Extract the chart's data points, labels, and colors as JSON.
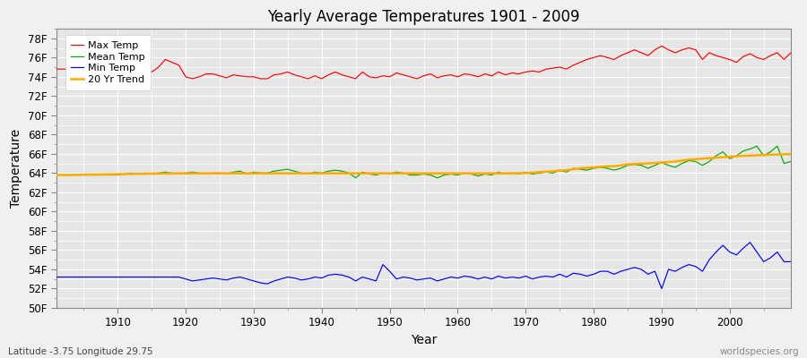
{
  "title": "Yearly Average Temperatures 1901 - 2009",
  "xlabel": "Year",
  "ylabel": "Temperature",
  "year_start": 1901,
  "year_end": 2009,
  "x_ticks": [
    1910,
    1920,
    1930,
    1940,
    1950,
    1960,
    1970,
    1980,
    1990,
    2000
  ],
  "y_ticks": [
    50,
    52,
    54,
    56,
    58,
    60,
    62,
    64,
    66,
    68,
    70,
    72,
    74,
    76,
    78
  ],
  "y_tick_labels": [
    "50F",
    "52F",
    "54F",
    "56F",
    "58F",
    "60F",
    "62F",
    "64F",
    "66F",
    "68F",
    "70F",
    "72F",
    "74F",
    "76F",
    "78F"
  ],
  "ylim": [
    50,
    79
  ],
  "xlim": [
    1901,
    2009
  ],
  "background_color": "#f0f0f0",
  "plot_bg_color": "#e6e6e6",
  "grid_color": "#ffffff",
  "max_temp_color": "#ff0000",
  "mean_temp_color": "#00aa00",
  "min_temp_color": "#0000ff",
  "trend_color": "#ffaa00",
  "legend_labels": [
    "Max Temp",
    "Mean Temp",
    "Min Temp",
    "20 Yr Trend"
  ],
  "subtitle_left": "Latitude -3.75 Longitude 29.75",
  "subtitle_right": "worldspecies.org",
  "max_temp": [
    74.8,
    74.8,
    74.8,
    74.8,
    74.8,
    74.8,
    74.8,
    74.8,
    74.8,
    75.2,
    75.5,
    75.2,
    74.3,
    74.8,
    74.5,
    75.0,
    75.8,
    75.5,
    75.2,
    74.0,
    73.8,
    74.0,
    74.3,
    74.3,
    74.1,
    73.9,
    74.2,
    74.1,
    74.0,
    74.0,
    73.8,
    73.8,
    74.2,
    74.3,
    74.5,
    74.2,
    74.0,
    73.8,
    74.1,
    73.8,
    74.2,
    74.5,
    74.2,
    74.0,
    73.8,
    74.5,
    74.0,
    73.9,
    74.1,
    74.0,
    74.4,
    74.2,
    74.0,
    73.8,
    74.1,
    74.3,
    73.9,
    74.1,
    74.2,
    74.0,
    74.3,
    74.2,
    74.0,
    74.3,
    74.1,
    74.5,
    74.2,
    74.4,
    74.3,
    74.5,
    74.6,
    74.5,
    74.8,
    74.9,
    75.0,
    74.8,
    75.2,
    75.5,
    75.8,
    76.0,
    76.2,
    76.0,
    75.8,
    76.2,
    76.5,
    76.8,
    76.5,
    76.2,
    76.8,
    77.2,
    76.8,
    76.5,
    76.8,
    77.0,
    76.8,
    75.8,
    76.5,
    76.2,
    76.0,
    75.8,
    75.5,
    76.1,
    76.4,
    76.0,
    75.8,
    76.2,
    76.5,
    75.8,
    76.5
  ],
  "mean_temp": [
    63.8,
    63.8,
    63.8,
    63.8,
    63.8,
    63.8,
    63.8,
    63.8,
    63.8,
    63.8,
    63.9,
    64.0,
    63.9,
    64.0,
    63.9,
    64.0,
    64.1,
    64.0,
    63.9,
    64.0,
    64.1,
    64.0,
    63.9,
    64.0,
    64.0,
    63.9,
    64.1,
    64.2,
    63.9,
    64.1,
    64.0,
    64.0,
    64.2,
    64.3,
    64.4,
    64.2,
    64.0,
    63.9,
    64.1,
    64.0,
    64.2,
    64.3,
    64.2,
    64.0,
    63.5,
    64.1,
    63.9,
    63.8,
    64.0,
    63.9,
    64.1,
    64.0,
    63.8,
    63.8,
    63.9,
    63.8,
    63.5,
    63.8,
    63.9,
    63.8,
    64.0,
    63.9,
    63.7,
    63.9,
    63.8,
    64.1,
    63.9,
    64.0,
    63.9,
    64.1,
    63.9,
    64.0,
    64.1,
    64.0,
    64.3,
    64.1,
    64.5,
    64.4,
    64.3,
    64.5,
    64.6,
    64.5,
    64.3,
    64.5,
    64.8,
    64.9,
    64.8,
    64.5,
    64.8,
    65.1,
    64.8,
    64.6,
    65.0,
    65.3,
    65.2,
    64.8,
    65.2,
    65.8,
    66.2,
    65.5,
    65.8,
    66.3,
    66.5,
    66.8,
    65.8,
    66.2,
    66.8,
    65.0,
    65.2
  ],
  "min_temp": [
    53.2,
    53.2,
    53.2,
    53.2,
    53.2,
    53.2,
    53.2,
    53.2,
    53.2,
    53.2,
    53.2,
    53.2,
    53.2,
    53.2,
    53.2,
    53.2,
    53.2,
    53.2,
    53.2,
    53.0,
    52.8,
    52.9,
    53.0,
    53.1,
    53.0,
    52.9,
    53.1,
    53.2,
    53.0,
    52.8,
    52.6,
    52.5,
    52.8,
    53.0,
    53.2,
    53.1,
    52.9,
    53.0,
    53.2,
    53.1,
    53.4,
    53.5,
    53.4,
    53.2,
    52.8,
    53.2,
    53.0,
    52.8,
    54.5,
    53.8,
    53.0,
    53.2,
    53.1,
    52.9,
    53.0,
    53.1,
    52.8,
    53.0,
    53.2,
    53.1,
    53.3,
    53.2,
    53.0,
    53.2,
    53.0,
    53.3,
    53.1,
    53.2,
    53.1,
    53.3,
    53.0,
    53.2,
    53.3,
    53.2,
    53.5,
    53.2,
    53.6,
    53.5,
    53.3,
    53.5,
    53.8,
    53.8,
    53.5,
    53.8,
    54.0,
    54.2,
    54.0,
    53.5,
    53.8,
    52.0,
    54.0,
    53.8,
    54.2,
    54.5,
    54.3,
    53.8,
    55.0,
    55.8,
    56.5,
    55.8,
    55.5,
    56.2,
    56.8,
    55.8,
    54.8,
    55.2,
    55.8,
    54.8,
    54.8
  ],
  "trend_mean": [
    63.8,
    63.8,
    63.8,
    63.82,
    63.84,
    63.85,
    63.86,
    63.87,
    63.88,
    63.89,
    63.9,
    63.91,
    63.92,
    63.93,
    63.94,
    63.95,
    63.96,
    63.97,
    63.97,
    63.97,
    63.97,
    63.97,
    63.97,
    63.97,
    63.97,
    63.97,
    63.97,
    63.97,
    63.97,
    63.97,
    63.97,
    63.97,
    63.97,
    63.97,
    63.97,
    63.97,
    63.97,
    63.97,
    63.97,
    63.97,
    63.97,
    63.97,
    63.97,
    63.97,
    63.97,
    63.97,
    63.97,
    63.97,
    63.97,
    63.97,
    63.97,
    63.97,
    63.97,
    63.97,
    63.97,
    63.97,
    63.97,
    63.97,
    63.97,
    63.97,
    63.97,
    63.97,
    63.97,
    63.97,
    63.97,
    63.97,
    63.97,
    63.98,
    63.99,
    64.0,
    64.05,
    64.1,
    64.15,
    64.2,
    64.25,
    64.3,
    64.4,
    64.5,
    64.55,
    64.6,
    64.65,
    64.7,
    64.72,
    64.8,
    64.9,
    64.95,
    64.98,
    65.0,
    65.05,
    65.1,
    65.15,
    65.2,
    65.3,
    65.4,
    65.45,
    65.5,
    65.55,
    65.6,
    65.65,
    65.7,
    65.75,
    65.8,
    65.82,
    65.85,
    65.88,
    65.9,
    65.92,
    65.95,
    65.97
  ]
}
